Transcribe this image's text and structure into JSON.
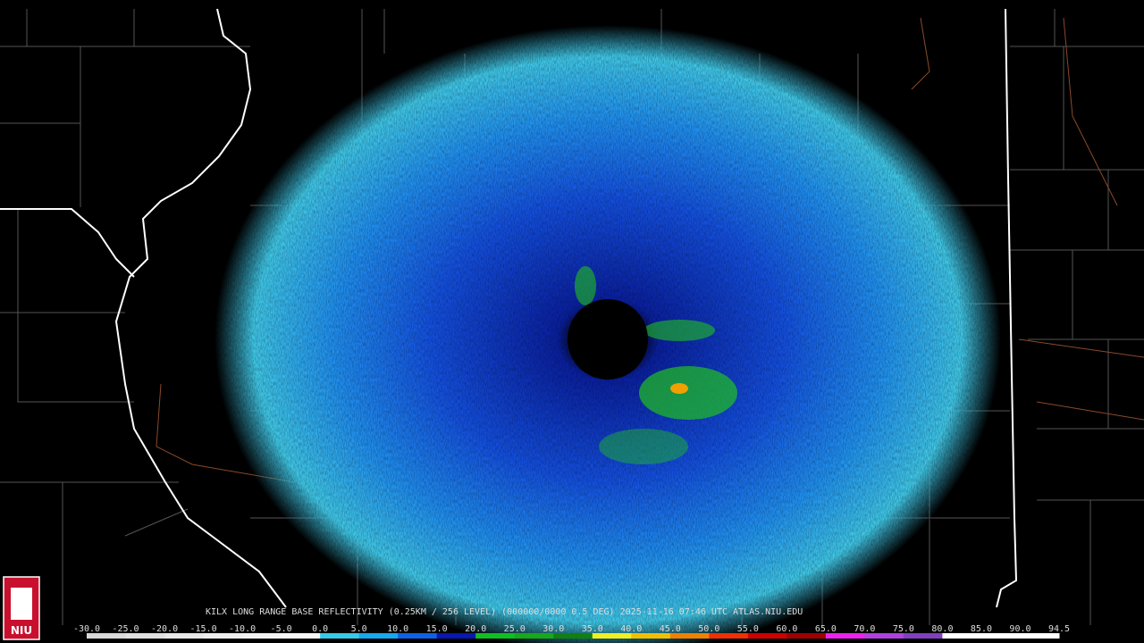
{
  "product_line": "KILX LONG RANGE BASE REFLECTIVITY (0.25KM / 256 LEVEL) (000000/0000 0.5 DEG) 2025-11-16 07:46 UTC  ATLAS.NIU.EDU",
  "logo": "NIU",
  "colorbar": [
    {
      "label": "-30.0",
      "color": "#d8d8d8"
    },
    {
      "label": "-25.0",
      "color": "#e0e0e0"
    },
    {
      "label": "-20.0",
      "color": "#e8e8e8"
    },
    {
      "label": "-15.0",
      "color": "#eeeeee"
    },
    {
      "label": "-10.0",
      "color": "#f2f2f2"
    },
    {
      "label": "-5.0",
      "color": "#f6f6f6"
    },
    {
      "label": "0.0",
      "color": "#38c8e8"
    },
    {
      "label": "5.0",
      "color": "#18a8f0"
    },
    {
      "label": "10.0",
      "color": "#1060e8"
    },
    {
      "label": "15.0",
      "color": "#0818b0"
    },
    {
      "label": "20.0",
      "color": "#10c020"
    },
    {
      "label": "25.0",
      "color": "#18a818"
    },
    {
      "label": "30.0",
      "color": "#108010"
    },
    {
      "label": "35.0",
      "color": "#f0f020"
    },
    {
      "label": "40.0",
      "color": "#f0c000"
    },
    {
      "label": "45.0",
      "color": "#f08000"
    },
    {
      "label": "50.0",
      "color": "#f03000"
    },
    {
      "label": "55.0",
      "color": "#d00000"
    },
    {
      "label": "60.0",
      "color": "#a00000"
    },
    {
      "label": "65.0",
      "color": "#f020f0"
    },
    {
      "label": "70.0",
      "color": "#b040e0"
    },
    {
      "label": "75.0",
      "color": "#8040c0"
    },
    {
      "label": "80.0",
      "color": "#ffffff"
    },
    {
      "label": "85.0",
      "color": "#ffffff"
    },
    {
      "label": "90.0",
      "color": "#ffffff"
    },
    {
      "label": "94.5",
      "color": "#ffffff"
    }
  ]
}
